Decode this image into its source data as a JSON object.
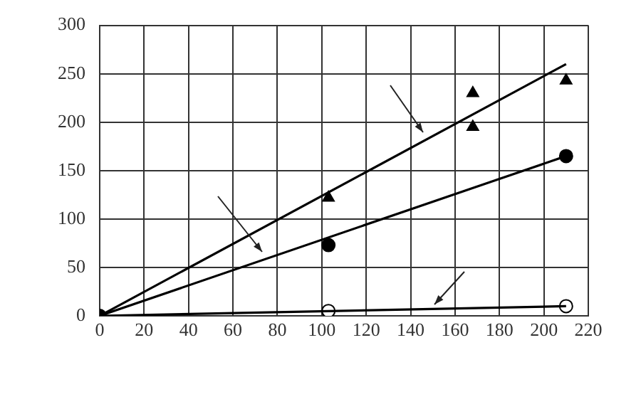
{
  "chart_data": {
    "type": "scatter",
    "xlim": [
      0,
      220
    ],
    "xticks": [
      0,
      20,
      40,
      60,
      80,
      100,
      120,
      140,
      160,
      180,
      200,
      220
    ],
    "ylim": [
      0,
      300
    ],
    "yticks": [
      0,
      50,
      100,
      150,
      200,
      250,
      300
    ],
    "grid": true,
    "legend": false,
    "series": [
      {
        "type": "line",
        "color": "#000000",
        "x": [
          0,
          210
        ],
        "values": [
          0,
          260
        ],
        "marker": "none"
      },
      {
        "type": "line",
        "color": "#000000",
        "x": [
          0,
          210
        ],
        "values": [
          0,
          165
        ],
        "marker": "none"
      },
      {
        "type": "line",
        "color": "#000000",
        "x": [
          0,
          210
        ],
        "values": [
          0,
          10
        ],
        "marker": "none"
      },
      {
        "type": "scatter",
        "color": "#000000",
        "x": [
          103,
          168,
          168,
          210
        ],
        "values": [
          122,
          230,
          195,
          243
        ],
        "marker": "triangle"
      },
      {
        "type": "scatter",
        "color": "#000000",
        "x": [
          0,
          103,
          210
        ],
        "values": [
          0,
          73,
          165
        ],
        "marker": "circle"
      },
      {
        "type": "scatter",
        "color": "#ffffff",
        "x": [
          103,
          210
        ],
        "values": [
          5,
          10
        ],
        "marker": "circle"
      }
    ]
  }
}
